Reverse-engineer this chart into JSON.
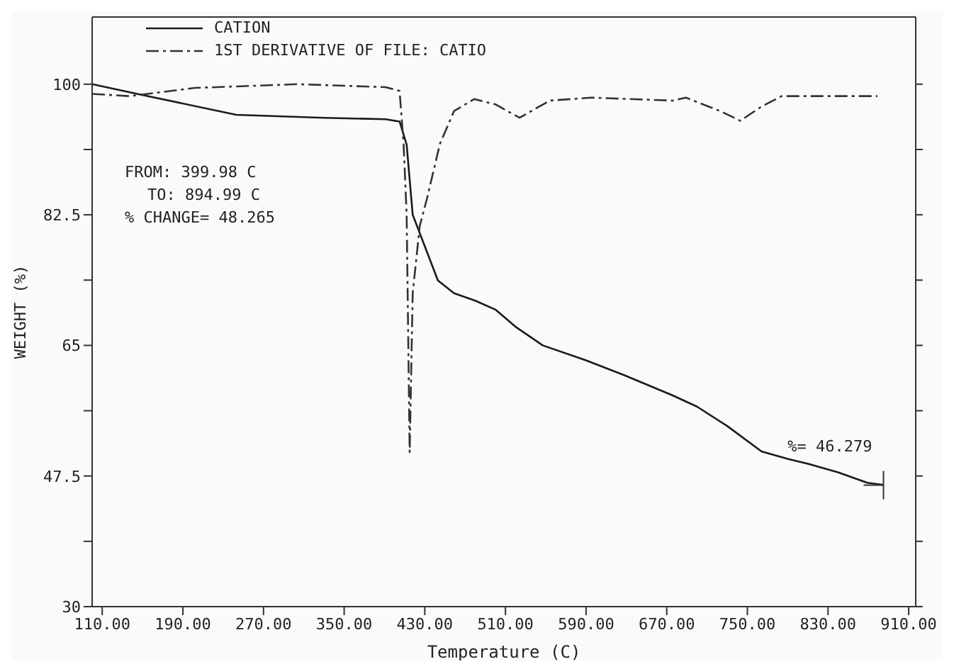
{
  "chart_data": {
    "type": "line",
    "xlabel": "Temperature (C)",
    "ylabel": "WEIGHT (%)",
    "xlim": [
      100,
      917
    ],
    "ylim": [
      30,
      109
    ],
    "xticks": [
      {
        "value": 110,
        "label": "110.00"
      },
      {
        "value": 190,
        "label": "190.00"
      },
      {
        "value": 270,
        "label": "270.00"
      },
      {
        "value": 350,
        "label": "350.00"
      },
      {
        "value": 430,
        "label": "430.00"
      },
      {
        "value": 510,
        "label": "510.00"
      },
      {
        "value": 590,
        "label": "590.00"
      },
      {
        "value": 670,
        "label": "670.00"
      },
      {
        "value": 750,
        "label": "750.00"
      },
      {
        "value": 830,
        "label": "830.00"
      },
      {
        "value": 910,
        "label": "910.00"
      }
    ],
    "yticks": [
      30,
      {
        "value": 38.75,
        "label": null
      },
      47.5,
      {
        "value": 56.25,
        "label": null
      },
      65,
      {
        "value": 73.75,
        "label": null
      },
      82.5,
      {
        "value": 91.25,
        "label": null
      },
      100
    ],
    "grid": false,
    "legend": "top left",
    "marker": "none",
    "series": [
      {
        "name": "CATION",
        "color": "#1a1a1a",
        "line_style": "solid",
        "x": [
          100,
          148,
          243,
          330,
          391,
          405,
          412,
          418,
          443,
          459,
          480,
          500,
          520,
          547,
          590,
          628,
          676,
          700,
          730,
          764,
          790,
          811,
          840,
          869,
          885
        ],
        "values": [
          100,
          98.6,
          95.9,
          95.5,
          95.3,
          95,
          91.9,
          82.5,
          73.7,
          72,
          71,
          69.8,
          67.5,
          65,
          63,
          61,
          58.3,
          56.8,
          54.2,
          50.8,
          49.8,
          49.1,
          48,
          46.6,
          46.3
        ]
      },
      {
        "name": "1ST DERIVATIVE OF FILE: CATIO",
        "color": "#333333",
        "line_style": "dashed",
        "x": [
          100,
          137,
          202,
          304,
          391,
          405,
          409,
          412,
          415,
          418,
          425,
          432,
          445,
          459,
          479,
          500,
          524,
          554,
          595,
          676,
          689,
          723,
          743,
          764,
          784,
          879
        ],
        "values": [
          98.7,
          98.4,
          99.5,
          100,
          99.6,
          99.1,
          91.9,
          82.5,
          50.7,
          72,
          81,
          84.6,
          92,
          96.4,
          98,
          97.3,
          95.5,
          97.8,
          98.2,
          97.8,
          98.2,
          96.4,
          95.1,
          97,
          98.4,
          98.4
        ]
      }
    ],
    "annotations": [
      "FROM: 399.98 C",
      "TO: 894.99 C",
      "% CHANGE= 48.265",
      {
        "text": "%= 46.279",
        "x": 885,
        "y": 46.279
      }
    ]
  }
}
